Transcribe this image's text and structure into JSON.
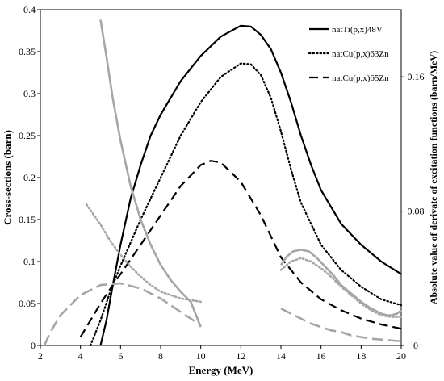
{
  "chart_data": {
    "type": "line",
    "title": "",
    "xlabel": "Energy (MeV)",
    "ylabel": "Cross-sections (barn)",
    "y2label": "Absolute value of derivate of excitation functions (barn/MeV)",
    "xlim": [
      2,
      20
    ],
    "ylim": [
      0,
      0.4
    ],
    "y2lim": [
      0,
      0.2
    ],
    "x_ticks": [
      "2",
      "4",
      "6",
      "8",
      "10",
      "12",
      "14",
      "16",
      "18",
      "20"
    ],
    "y_ticks": [
      "0",
      "0.05",
      "0.1",
      "0.15",
      "0.2",
      "0.25",
      "0.3",
      "0.35",
      "0.4"
    ],
    "y2_ticks": [
      "0",
      "0.08",
      "0.16"
    ],
    "legend_position": "top-right",
    "grid": false,
    "colors": {
      "cross_section": "#000000",
      "derivative": "#a6a6a6"
    },
    "series": [
      {
        "name": "natTi(p,x)48V",
        "axis": "left",
        "style": "solid",
        "color": "#000000",
        "x": [
          5.0,
          5.3,
          5.6,
          6.0,
          6.5,
          7.0,
          7.5,
          8.0,
          9.0,
          10.0,
          11.0,
          12.0,
          12.5,
          13.0,
          13.5,
          14.0,
          14.5,
          15.0,
          15.5,
          16.0,
          17.0,
          18.0,
          19.0,
          20.0
        ],
        "y": [
          0.0,
          0.03,
          0.07,
          0.12,
          0.175,
          0.215,
          0.25,
          0.275,
          0.315,
          0.345,
          0.368,
          0.381,
          0.38,
          0.37,
          0.353,
          0.325,
          0.29,
          0.25,
          0.215,
          0.185,
          0.145,
          0.12,
          0.1,
          0.085
        ]
      },
      {
        "name": "natCu(p,x)63Zn",
        "axis": "left",
        "style": "dotted",
        "color": "#000000",
        "x": [
          4.5,
          5.0,
          5.5,
          6.0,
          7.0,
          8.0,
          9.0,
          10.0,
          11.0,
          12.0,
          12.5,
          13.0,
          13.5,
          14.0,
          14.5,
          15.0,
          16.0,
          17.0,
          18.0,
          19.0,
          20.0
        ],
        "y": [
          0.0,
          0.03,
          0.065,
          0.095,
          0.15,
          0.2,
          0.25,
          0.29,
          0.32,
          0.336,
          0.335,
          0.322,
          0.295,
          0.255,
          0.21,
          0.17,
          0.12,
          0.09,
          0.07,
          0.055,
          0.048
        ]
      },
      {
        "name": "natCu(p,x)65Zn",
        "axis": "left",
        "style": "dashed",
        "color": "#000000",
        "x": [
          4.0,
          4.5,
          5.0,
          5.5,
          6.0,
          7.0,
          8.0,
          9.0,
          10.0,
          10.5,
          11.0,
          12.0,
          13.0,
          14.0,
          15.0,
          16.0,
          17.0,
          18.0,
          19.0,
          20.0
        ],
        "y": [
          0.01,
          0.03,
          0.05,
          0.068,
          0.085,
          0.12,
          0.155,
          0.19,
          0.215,
          0.22,
          0.218,
          0.195,
          0.155,
          0.105,
          0.075,
          0.055,
          0.042,
          0.032,
          0.025,
          0.02
        ]
      },
      {
        "axis": "right",
        "style": "solid",
        "color": "#a6a6a6",
        "x": [
          5.0,
          5.3,
          5.6,
          6.0,
          6.5,
          7.0,
          7.5,
          8.0,
          8.5,
          9.0,
          9.5,
          10.0
        ],
        "y": [
          0.194,
          0.172,
          0.148,
          0.122,
          0.095,
          0.075,
          0.06,
          0.048,
          0.039,
          0.032,
          0.026,
          0.011
        ]
      },
      {
        "axis": "right",
        "style": "solid",
        "color": "#a6a6a6",
        "x": [
          14.0,
          14.3,
          14.6,
          15.0,
          15.4,
          15.8,
          16.2,
          16.6,
          17.0,
          17.5,
          18.0,
          18.5,
          19.0,
          19.3,
          19.5,
          19.8,
          20.0
        ],
        "y": [
          0.048,
          0.053,
          0.056,
          0.057,
          0.056,
          0.052,
          0.047,
          0.042,
          0.036,
          0.031,
          0.026,
          0.022,
          0.019,
          0.018,
          0.018,
          0.019,
          0.021
        ]
      },
      {
        "axis": "right",
        "style": "dotted",
        "color": "#a6a6a6",
        "x": [
          4.3,
          5.0,
          5.5,
          6.0,
          6.5,
          7.0,
          7.5,
          8.0,
          8.5,
          9.0,
          9.5,
          10.0
        ],
        "y": [
          0.084,
          0.072,
          0.062,
          0.054,
          0.047,
          0.041,
          0.036,
          0.032,
          0.03,
          0.028,
          0.027,
          0.026
        ]
      },
      {
        "axis": "right",
        "style": "dotted",
        "color": "#a6a6a6",
        "x": [
          14.0,
          14.5,
          15.0,
          15.5,
          16.0,
          16.5,
          17.0,
          17.5,
          18.0,
          18.5,
          19.0,
          19.5,
          20.0
        ],
        "y": [
          0.045,
          0.05,
          0.052,
          0.05,
          0.046,
          0.041,
          0.035,
          0.03,
          0.025,
          0.021,
          0.018,
          0.017,
          0.017
        ]
      },
      {
        "axis": "right",
        "style": "dashed",
        "color": "#a6a6a6",
        "x": [
          2.2,
          2.5,
          3.0,
          4.0,
          5.0,
          6.0,
          7.0,
          8.0,
          9.0,
          10.0
        ],
        "y": [
          0.0,
          0.008,
          0.018,
          0.03,
          0.036,
          0.037,
          0.034,
          0.028,
          0.02,
          0.012
        ]
      },
      {
        "axis": "right",
        "style": "dashed",
        "color": "#a6a6a6",
        "x": [
          14.0,
          14.5,
          15.0,
          15.5,
          16.0,
          16.5,
          17.0,
          17.5,
          18.0,
          18.5,
          19.0,
          19.5,
          20.0
        ],
        "y": [
          0.022,
          0.019,
          0.016,
          0.013,
          0.011,
          0.009,
          0.008,
          0.006,
          0.005,
          0.004,
          0.0035,
          0.003,
          0.0025
        ]
      }
    ]
  }
}
